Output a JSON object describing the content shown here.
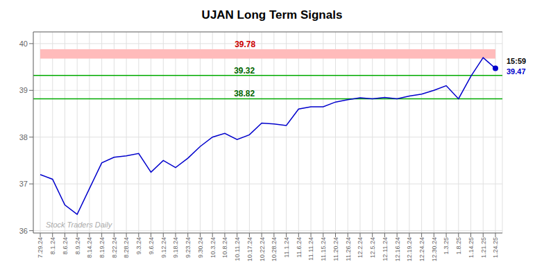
{
  "chart_data": {
    "type": "line",
    "title": "UJAN Long Term Signals",
    "color": "#0000cc",
    "grid": true,
    "ylim": [
      35.95,
      40.25
    ],
    "yticks": [
      36,
      37,
      38,
      39,
      40
    ],
    "categories": [
      "7.29.24",
      "8.1.24",
      "8.6.24",
      "8.9.24",
      "8.14.24",
      "8.19.24",
      "8.22.24",
      "8.28.24",
      "9.3.24",
      "9.6.24",
      "9.12.24",
      "9.18.24",
      "9.23.24",
      "9.30.24",
      "10.3.24",
      "10.8.24",
      "10.11.24",
      "10.17.24",
      "10.22.24",
      "10.28.24",
      "11.1.24",
      "11.6.24",
      "11.11.24",
      "11.15.24",
      "11.20.24",
      "11.26.24",
      "12.2.24",
      "12.5.24",
      "12.11.24",
      "12.16.24",
      "12.19.24",
      "12.24.24",
      "12.30.24",
      "1.3.25",
      "1.8.25",
      "1.14.25",
      "1.21.25",
      "1.24.25"
    ],
    "values": [
      37.2,
      37.1,
      36.55,
      36.35,
      36.9,
      37.45,
      37.57,
      37.6,
      37.65,
      37.25,
      37.5,
      37.35,
      37.55,
      37.8,
      38.0,
      38.08,
      37.95,
      38.05,
      38.3,
      38.28,
      38.25,
      38.6,
      38.65,
      38.65,
      38.75,
      38.8,
      38.84,
      38.82,
      38.85,
      38.82,
      38.88,
      38.92,
      39.0,
      39.1,
      38.82,
      39.3,
      39.7,
      39.47
    ],
    "reference_band": {
      "y": 39.78,
      "low": 39.68,
      "high": 39.88,
      "color": "#ffbbbb",
      "label_color": "#cc0000"
    },
    "reference_lines": [
      {
        "y": 39.32,
        "color": "#00aa00",
        "label_color": "#006600"
      },
      {
        "y": 38.82,
        "color": "#00aa00",
        "label_color": "#006600"
      }
    ],
    "last_point": {
      "time": "15:59",
      "value": 39.47,
      "color": "#0000cc"
    },
    "watermark": "Stock Traders Daily"
  }
}
